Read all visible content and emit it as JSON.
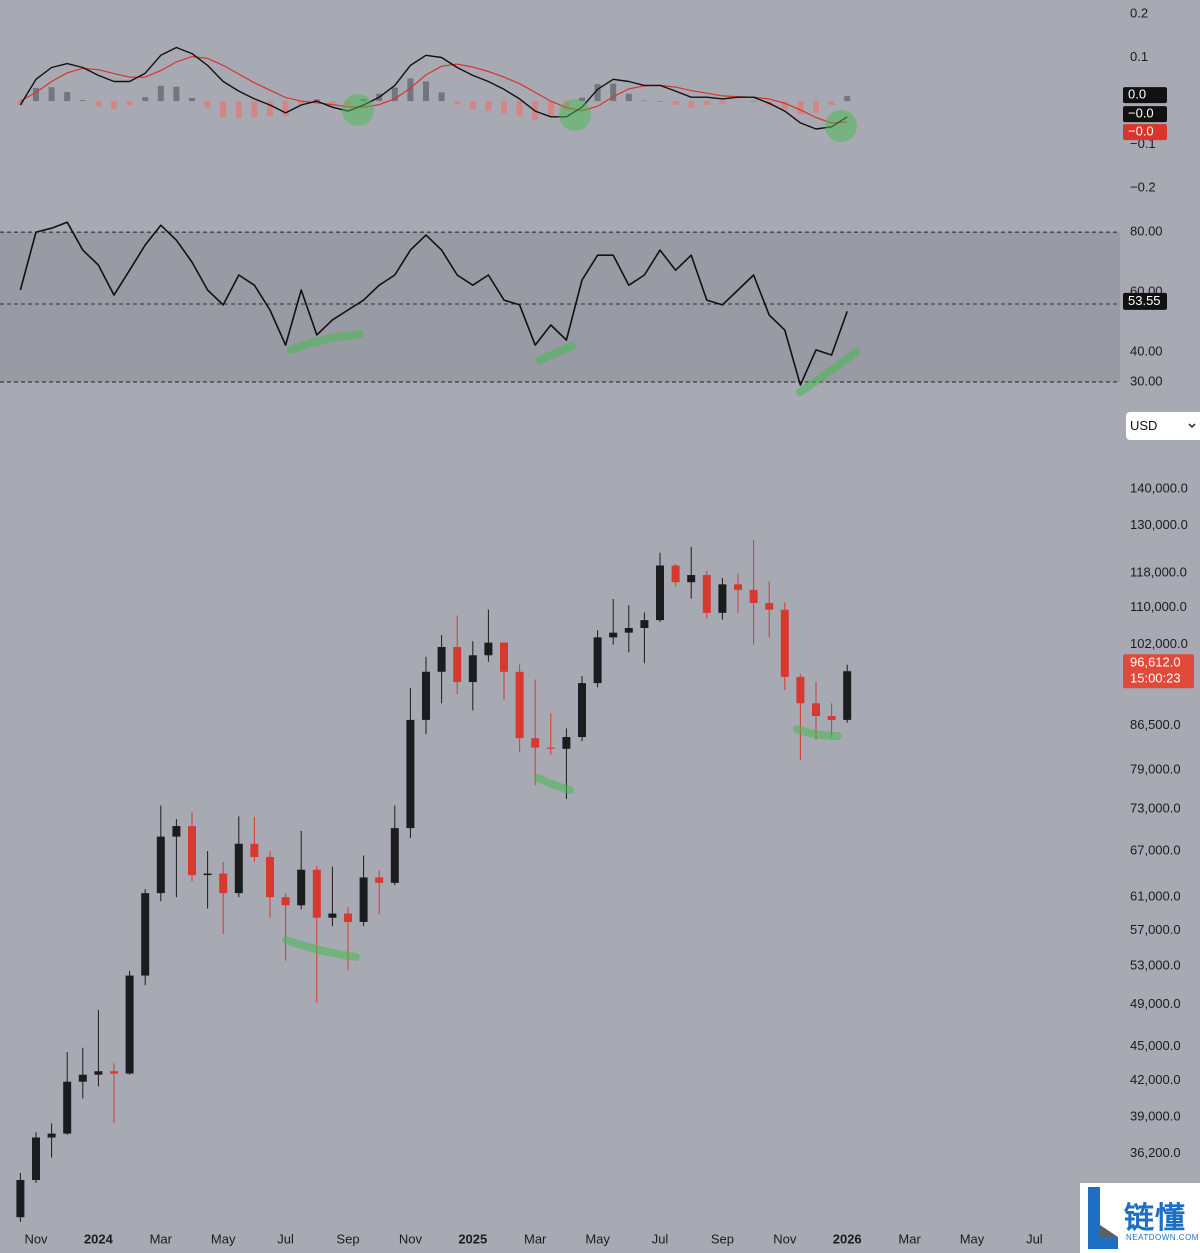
{
  "chart_data": [
    {
      "type": "macd",
      "ylim": [
        -0.227,
        0.232
      ],
      "yticks": [
        0.2,
        0.1,
        {
          "value": -0.1,
          "label": "−0.1"
        },
        {
          "value": -0.2,
          "label": "−0.2"
        }
      ],
      "histogram": {
        "up_color": "#74767e",
        "down_color": "#d28686",
        "last_value_label": "0.0",
        "values": [
          -0.009,
          0.03,
          0.032,
          0.021,
          0.002,
          -0.013,
          -0.018,
          -0.01,
          0.009,
          0.035,
          0.033,
          0.007,
          -0.016,
          -0.037,
          -0.039,
          -0.037,
          -0.034,
          -0.035,
          -0.009,
          0.004,
          -0.006,
          -0.01,
          0.005,
          0.017,
          0.031,
          0.052,
          0.045,
          0.02,
          -0.008,
          -0.019,
          -0.023,
          -0.028,
          -0.035,
          -0.043,
          -0.036,
          -0.021,
          0.008,
          0.039,
          0.04,
          0.017,
          0.001,
          0,
          -0.009,
          -0.015,
          -0.009,
          -0.007,
          -0.001,
          0,
          -0.01,
          -0.018,
          -0.03,
          -0.026,
          -0.009,
          0.012,
          null,
          null,
          null,
          null,
          null,
          null,
          null,
          null,
          null,
          null,
          null,
          null,
          null,
          null
        ]
      },
      "macd": {
        "color": "#111111",
        "last_value_label": "−0.0",
        "values": [
          -0.009,
          0.05,
          0.077,
          0.086,
          0.077,
          0.059,
          0.045,
          0.045,
          0.064,
          0.105,
          0.123,
          0.109,
          0.082,
          0.045,
          0.023,
          0.005,
          -0.009,
          -0.027,
          -0.009,
          0,
          -0.014,
          -0.023,
          -0.009,
          0.009,
          0.036,
          0.082,
          0.105,
          0.1,
          0.077,
          0.059,
          0.045,
          0.027,
          0.005,
          -0.023,
          -0.036,
          -0.036,
          -0.014,
          0.027,
          0.05,
          0.045,
          0.036,
          0.036,
          0.023,
          0.009,
          0.009,
          0.005,
          0.009,
          0.009,
          -0.005,
          -0.023,
          -0.05,
          -0.064,
          -0.059,
          -0.036,
          null,
          null,
          null,
          null,
          null,
          null,
          null,
          null,
          null,
          null,
          null,
          null,
          null,
          null
        ]
      },
      "signal": {
        "color": "#d8352c",
        "last_value_label": "−0.0",
        "values": [
          0,
          0.02,
          0.045,
          0.065,
          0.075,
          0.072,
          0.063,
          0.055,
          0.055,
          0.07,
          0.09,
          0.102,
          0.098,
          0.082,
          0.062,
          0.042,
          0.025,
          0.008,
          0,
          -0.004,
          -0.008,
          -0.013,
          -0.014,
          -0.008,
          0.005,
          0.03,
          0.06,
          0.08,
          0.085,
          0.078,
          0.068,
          0.055,
          0.04,
          0.02,
          0,
          -0.015,
          -0.022,
          -0.012,
          0.01,
          0.028,
          0.035,
          0.036,
          0.032,
          0.024,
          0.018,
          0.012,
          0.01,
          0.009,
          0.005,
          -0.005,
          -0.02,
          -0.038,
          -0.05,
          -0.048,
          null,
          null,
          null,
          null,
          null,
          null,
          null,
          null,
          null,
          null,
          null,
          null,
          null,
          null
        ]
      }
    },
    {
      "type": "line",
      "ylim": [
        24,
        90.7
      ],
      "yticks": [
        {
          "value": 80,
          "label": "80.00"
        },
        {
          "value": 60,
          "label": "60.00"
        },
        {
          "value": 40,
          "label": "40.00"
        },
        {
          "value": 30,
          "label": "30.00"
        }
      ],
      "bands": [
        80,
        30
      ],
      "midline": 56,
      "series": [
        {
          "color": "#111111",
          "values": [
            60.7,
            80,
            81.3,
            83.3,
            74,
            69,
            59,
            67.3,
            75.7,
            82.3,
            77.3,
            70,
            60.7,
            55.7,
            65.7,
            62.3,
            54,
            42.3,
            60.7,
            45.7,
            50.7,
            54,
            57.3,
            62.3,
            65.7,
            74,
            79,
            74,
            65.7,
            62.3,
            65.7,
            57.3,
            55.7,
            42.3,
            49,
            44,
            64,
            72.3,
            72.3,
            62.3,
            65.7,
            74,
            67.3,
            72.3,
            57.3,
            55.7,
            60.7,
            65.7,
            52.3,
            47.3,
            29,
            40.7,
            39,
            53.55,
            null,
            null,
            null,
            null,
            null,
            null,
            null,
            null,
            null,
            null,
            null,
            null,
            null,
            null
          ]
        }
      ]
    },
    {
      "type": "candlestick",
      "log_scale": true,
      "ylim": [
        31300,
        148500
      ],
      "yticks": [
        {
          "value": 140000,
          "label": "140,000.0"
        },
        {
          "value": 130000,
          "label": "130,000.0"
        },
        {
          "value": 118000,
          "label": "118,000.0"
        },
        {
          "value": 110000,
          "label": "110,000.0"
        },
        {
          "value": 102000,
          "label": "102,000.0"
        },
        {
          "value": 86500,
          "label": "86,500.0"
        },
        {
          "value": 79000,
          "label": "79,000.0"
        },
        {
          "value": 73000,
          "label": "73,000.0"
        },
        {
          "value": 67000,
          "label": "67,000.0"
        },
        {
          "value": 61000,
          "label": "61,000.0"
        },
        {
          "value": 57000,
          "label": "57,000.0"
        },
        {
          "value": 53000,
          "label": "53,000.0"
        },
        {
          "value": 49000,
          "label": "49,000.0"
        },
        {
          "value": 45000,
          "label": "45,000.0"
        },
        {
          "value": 42000,
          "label": "42,000.0"
        },
        {
          "value": 39000,
          "label": "39,000.0"
        },
        {
          "value": 36200,
          "label": "36,200.0"
        }
      ],
      "up_color": "#1c1c1e",
      "down_color": "#d7392f",
      "last_label": "96,612.0",
      "countdown": "15:00:23",
      "last_label_color": "#e04a3b",
      "categories": [
        null,
        "Nov",
        null,
        null,
        null,
        "2024",
        null,
        null,
        null,
        "Mar",
        null,
        null,
        null,
        "May",
        null,
        null,
        null,
        "Jul",
        null,
        null,
        null,
        "Sep",
        null,
        null,
        null,
        "Nov",
        null,
        null,
        null,
        "2025",
        null,
        null,
        null,
        "Mar",
        null,
        null,
        null,
        "May",
        null,
        null,
        null,
        "Jul",
        null,
        null,
        null,
        "Sep",
        null,
        null,
        null,
        "Nov",
        null,
        null,
        null,
        "2026",
        null,
        null,
        null,
        "Mar",
        null,
        null,
        null,
        "May",
        null,
        null,
        null,
        "Jul",
        null,
        null
      ],
      "open": [
        31800,
        34300,
        37400,
        37700,
        41900,
        42500,
        42800,
        42600,
        52000,
        61500,
        69000,
        70500,
        63800,
        64000,
        61500,
        68000,
        66200,
        61000,
        60000,
        64500,
        58500,
        59000,
        58000,
        63500,
        62800,
        70200,
        87500,
        96500,
        101500,
        94500,
        99800,
        102400,
        96500,
        84300,
        82700,
        82500,
        84500,
        94300,
        103500,
        104500,
        105500,
        107200,
        119800,
        115800,
        117500,
        108800,
        115300,
        114000,
        111000,
        109500,
        95500,
        90500,
        88200,
        87500,
        null,
        null,
        null,
        null,
        null,
        null,
        null,
        null,
        null,
        null,
        null,
        null,
        null,
        null
      ],
      "high": [
        34800,
        37800,
        38500,
        44500,
        44900,
        48500,
        43500,
        52500,
        62000,
        73500,
        71500,
        72500,
        67000,
        65500,
        71900,
        71800,
        67000,
        61500,
        69800,
        65000,
        64900,
        59800,
        66400,
        64400,
        73500,
        93400,
        99500,
        104000,
        108200,
        102700,
        109500,
        102500,
        98000,
        95000,
        88700,
        86000,
        95700,
        105000,
        111900,
        110500,
        108900,
        123000,
        120200,
        124400,
        118500,
        116800,
        117900,
        126200,
        116000,
        111200,
        96000,
        94600,
        90500,
        97900,
        null,
        null,
        null,
        null,
        null,
        null,
        null,
        null,
        null,
        null,
        null,
        null,
        null,
        null
      ],
      "low": [
        31500,
        34100,
        35900,
        37600,
        40500,
        41500,
        38500,
        42500,
        51000,
        60500,
        61000,
        63000,
        59600,
        56600,
        61000,
        65500,
        58500,
        53600,
        59500,
        49200,
        57500,
        52600,
        57500,
        58900,
        62500,
        68800,
        85000,
        90500,
        92200,
        89200,
        98500,
        91200,
        82000,
        76600,
        81500,
        74500,
        83800,
        93500,
        102000,
        100400,
        98200,
        106800,
        114800,
        112000,
        107500,
        107300,
        108700,
        102000,
        103500,
        93000,
        80600,
        84000,
        84500,
        87000,
        null,
        null,
        null,
        null,
        null,
        null,
        null,
        null,
        null,
        null,
        null,
        null,
        null,
        null
      ],
      "close": [
        34300,
        37400,
        37700,
        41900,
        42500,
        42800,
        42600,
        52000,
        61500,
        69000,
        70500,
        63800,
        64000,
        61500,
        68000,
        66200,
        61000,
        60000,
        64500,
        58500,
        59000,
        58000,
        63500,
        62800,
        70200,
        87500,
        96500,
        101500,
        94500,
        99800,
        102400,
        96500,
        84300,
        82700,
        82500,
        84500,
        94300,
        103500,
        104500,
        105500,
        107200,
        119800,
        115800,
        117500,
        108800,
        115300,
        114000,
        111000,
        109500,
        95500,
        90500,
        88200,
        87500,
        96612,
        null,
        null,
        null,
        null,
        null,
        null,
        null,
        null,
        null,
        null,
        null,
        null,
        null,
        null
      ]
    }
  ],
  "currency_selector": "USD",
  "watermark": {
    "text": "链懂",
    "site": "NEATDOWN.COM"
  }
}
